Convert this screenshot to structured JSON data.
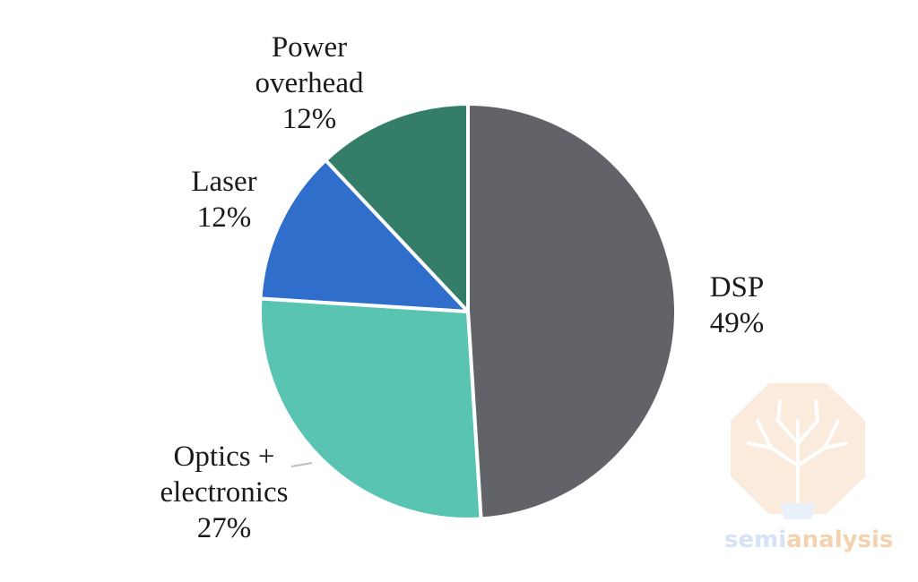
{
  "chart_data": {
    "type": "pie",
    "title": "",
    "slices": [
      {
        "label": "DSP",
        "percent_label": "49%",
        "value": 49,
        "color": "#626368"
      },
      {
        "label": "Optics + electronics",
        "percent_label": "27%",
        "value": 27,
        "color": "#59c4b2"
      },
      {
        "label": "Laser",
        "percent_label": "12%",
        "value": 12,
        "color": "#2f6fcb"
      },
      {
        "label": "Power overhead",
        "percent_label": "12%",
        "value": 12,
        "color": "#347e69"
      }
    ],
    "start_angle": "top",
    "direction": "clockwise",
    "legend": "none",
    "labels": {
      "dsp": {
        "line1": "DSP",
        "line2": "49%"
      },
      "optics": {
        "line1": "Optics +",
        "line2": "electronics",
        "line3": "27%"
      },
      "laser": {
        "line1": "Laser",
        "line2": "12%"
      },
      "power": {
        "line1": "Power",
        "line2": "overhead",
        "line3": "12%"
      }
    }
  },
  "watermark": {
    "part1": "semi",
    "part2": "analysis"
  }
}
